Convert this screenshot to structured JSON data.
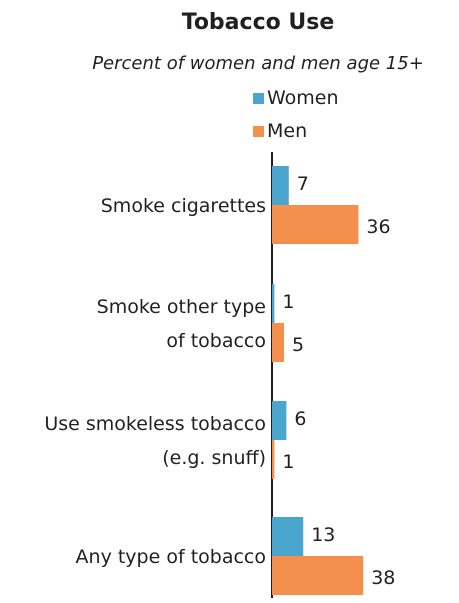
{
  "chart_data": {
    "type": "bar",
    "orientation": "horizontal",
    "title": "Tobacco Use",
    "subtitle": "Percent of women and men age 15+",
    "categories": [
      [
        "Smoke cigarettes"
      ],
      [
        "Smoke other type",
        "of tobacco"
      ],
      [
        "Use smokeless tobacco",
        "(e.g. snuff)"
      ],
      [
        "Any type of tobacco"
      ]
    ],
    "series": [
      {
        "name": "Women",
        "color": "#4aa6cc",
        "values": [
          7,
          1,
          6,
          13
        ]
      },
      {
        "name": "Men",
        "color": "#f58f4d",
        "values": [
          36,
          5,
          1,
          38
        ]
      }
    ],
    "legend": {
      "position": "top-center"
    },
    "grid": false
  }
}
